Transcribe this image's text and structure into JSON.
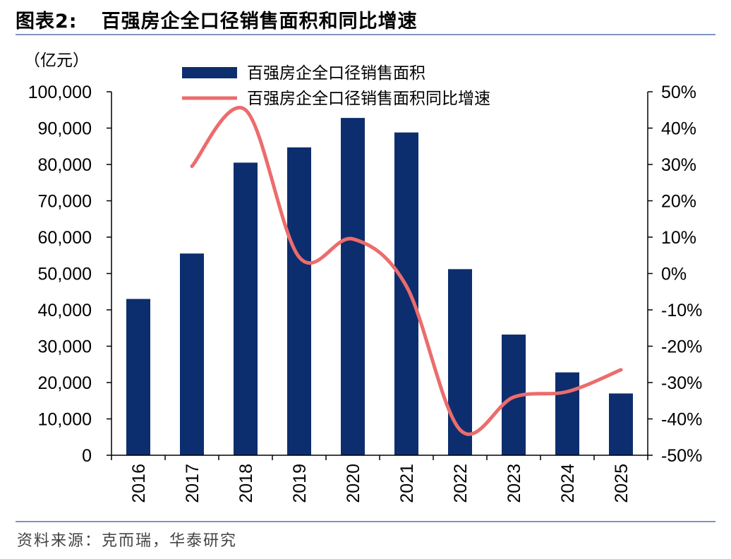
{
  "header": {
    "figure_label": "图表2:",
    "title": "百强房企全口径销售面积和同比增速"
  },
  "footer": {
    "source": "资料来源：克而瑞，华泰研究"
  },
  "colors": {
    "bar": "#0d2e6e",
    "line": "#ec6c6c",
    "rule": "#7f95bd"
  },
  "chart_data": {
    "type": "bar",
    "title": "百强房企全口径销售面积和同比增速",
    "unit_label": "（亿元）",
    "categories": [
      "2016",
      "2017",
      "2018",
      "2019",
      "2020",
      "2021",
      "2022",
      "2023",
      "2024",
      "2025"
    ],
    "series": [
      {
        "name": "百强房企全口径销售面积",
        "type": "bar",
        "axis": "left",
        "values": [
          43000,
          55500,
          80500,
          84700,
          92800,
          88800,
          51200,
          33200,
          22800,
          17000
        ]
      },
      {
        "name": "百强房企全口径销售面积同比增速",
        "type": "line",
        "axis": "right",
        "values": [
          null,
          29.5,
          45.0,
          4.5,
          9.5,
          -3.5,
          -43.0,
          -34.0,
          -32.5,
          -26.5
        ]
      }
    ],
    "left_axis": {
      "ylim": [
        0,
        100000
      ],
      "ticks": [
        "0",
        "10,000",
        "20,000",
        "30,000",
        "40,000",
        "50,000",
        "60,000",
        "70,000",
        "80,000",
        "90,000",
        "100,000"
      ]
    },
    "right_axis": {
      "ylim": [
        -50,
        50
      ],
      "ticks": [
        "-50%",
        "-40%",
        "-30%",
        "-20%",
        "-10%",
        "0%",
        "10%",
        "20%",
        "30%",
        "40%",
        "50%"
      ]
    },
    "legend_position": "top-center",
    "grid": false
  }
}
